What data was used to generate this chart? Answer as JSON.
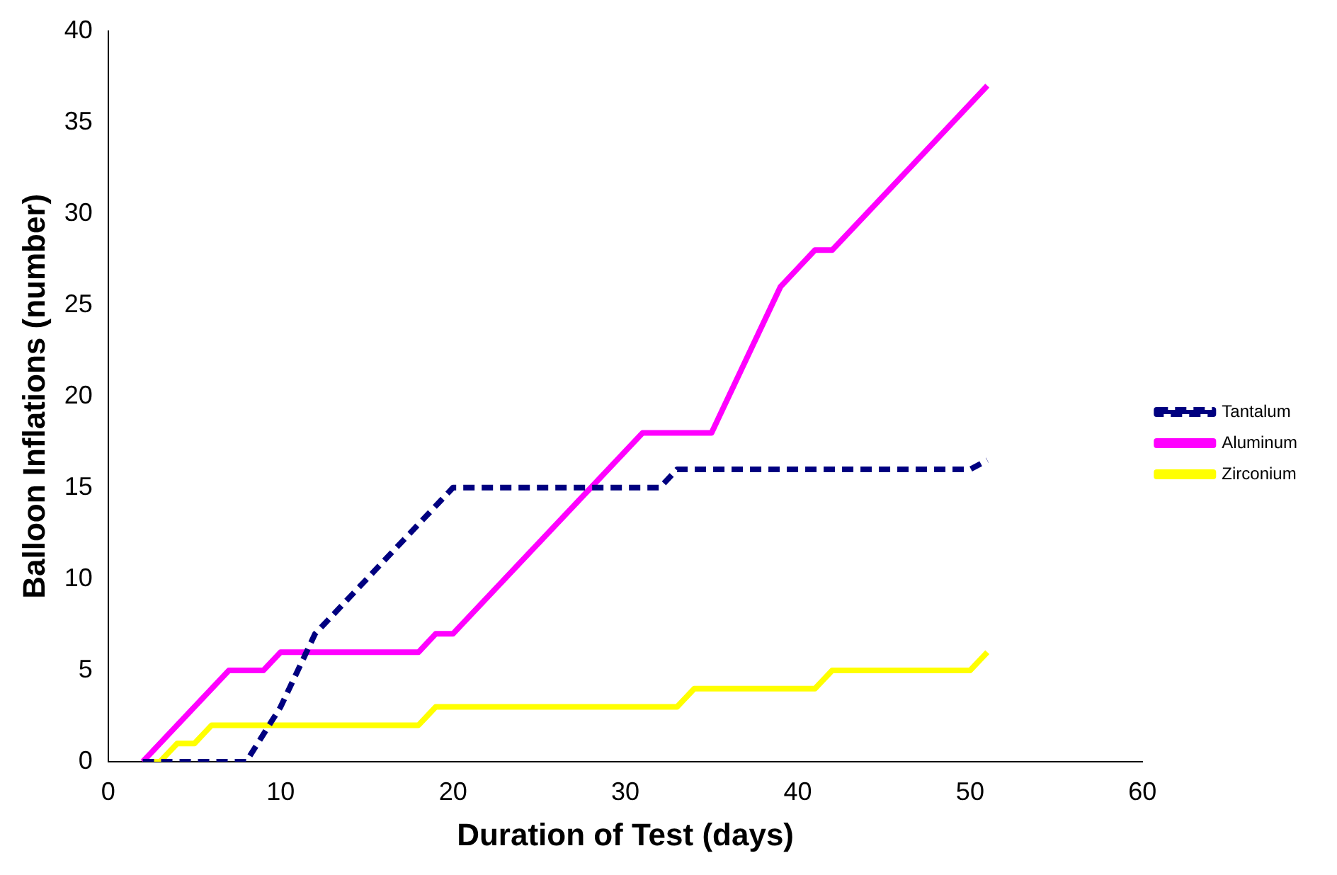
{
  "chart_data": {
    "type": "line",
    "xlabel": "Duration of Test (days)",
    "ylabel": "Balloon Inflations (number)",
    "xlim": [
      0,
      60
    ],
    "xticks": [
      0,
      10,
      20,
      30,
      40,
      50,
      60
    ],
    "ylim": [
      0,
      40
    ],
    "yticks": [
      0,
      5,
      10,
      15,
      20,
      25,
      30,
      35,
      40
    ],
    "grid": false,
    "legend": "right",
    "marker": "none",
    "series": [
      {
        "name": "Tantalum",
        "color": "#000080",
        "line_style": "dashed",
        "x": [
          2,
          8,
          10,
          12,
          20,
          32,
          33,
          50,
          51
        ],
        "values": [
          0,
          0,
          3,
          7,
          15,
          15,
          16,
          16,
          16.5
        ]
      },
      {
        "name": "Aluminum",
        "color": "#ff00ff",
        "line_style": "solid",
        "x": [
          2,
          7,
          9,
          10,
          17,
          18,
          19,
          20,
          31,
          34,
          35,
          39,
          40,
          41,
          42,
          51
        ],
        "values": [
          0,
          5,
          5,
          6,
          6,
          6,
          7,
          7,
          18,
          18,
          18,
          26,
          27,
          28,
          28,
          37
        ]
      },
      {
        "name": "Zirconium",
        "color": "#ffff00",
        "line_style": "solid",
        "x": [
          2,
          3,
          4,
          5,
          6,
          7,
          18,
          19,
          32,
          33,
          34,
          41,
          42,
          50,
          51
        ],
        "values": [
          0,
          0,
          1,
          1,
          2,
          2,
          2,
          3,
          3,
          3,
          4,
          4,
          5,
          5,
          6
        ]
      }
    ]
  }
}
